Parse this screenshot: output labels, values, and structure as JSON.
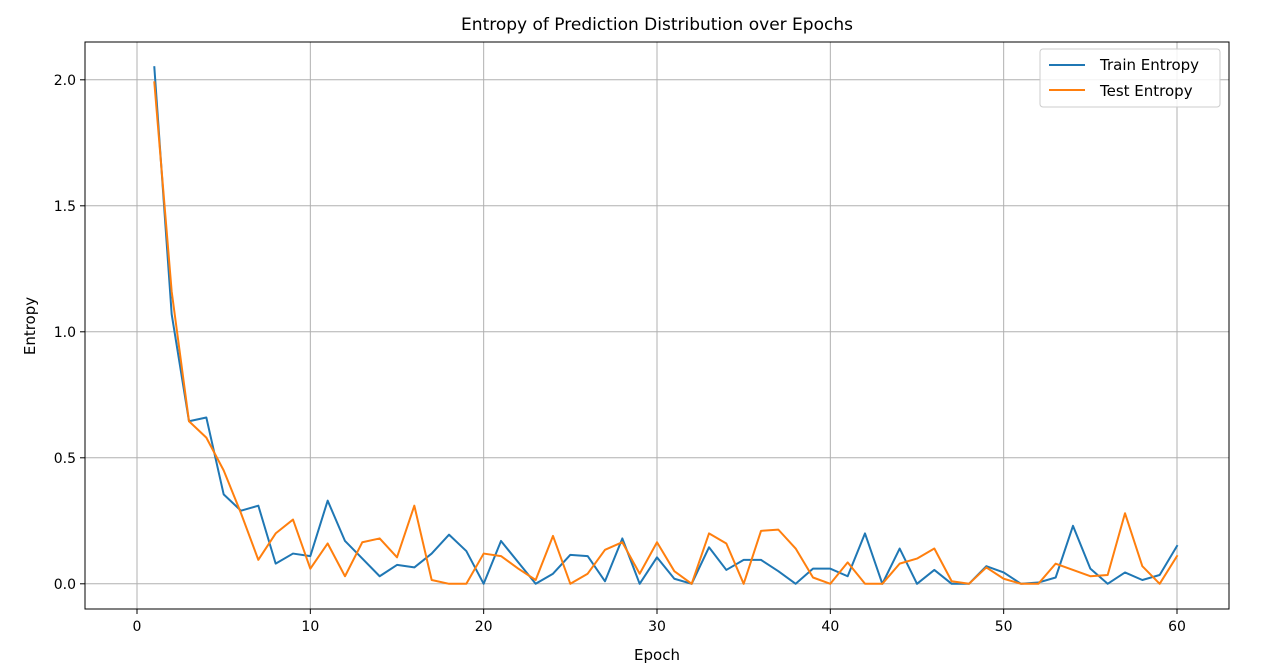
{
  "chart_data": {
    "type": "line",
    "title": "Entropy of Prediction Distribution over Epochs",
    "xlabel": "Epoch",
    "ylabel": "Entropy",
    "xlim": [
      -3,
      63
    ],
    "ylim": [
      -0.1,
      2.15
    ],
    "xticks": [
      0,
      10,
      20,
      30,
      40,
      50,
      60
    ],
    "yticks": [
      0.0,
      0.5,
      1.0,
      1.5,
      2.0
    ],
    "xtick_labels": [
      "0",
      "10",
      "20",
      "30",
      "40",
      "50",
      "60"
    ],
    "ytick_labels": [
      "0.0",
      "0.5",
      "1.0",
      "1.5",
      "2.0"
    ],
    "grid": true,
    "legend_position": "top-right",
    "x": [
      1,
      2,
      3,
      4,
      5,
      6,
      7,
      8,
      9,
      10,
      11,
      12,
      13,
      14,
      15,
      16,
      17,
      18,
      19,
      20,
      21,
      22,
      23,
      24,
      25,
      26,
      27,
      28,
      29,
      30,
      31,
      32,
      33,
      34,
      35,
      36,
      37,
      38,
      39,
      40,
      41,
      42,
      43,
      44,
      45,
      46,
      47,
      48,
      49,
      50,
      51,
      52,
      53,
      54,
      55,
      56,
      57,
      58,
      59,
      60
    ],
    "series": [
      {
        "name": "Train Entropy",
        "color": "#1f77b4",
        "values": [
          2.05,
          1.07,
          0.645,
          0.66,
          0.355,
          0.29,
          0.31,
          0.08,
          0.12,
          0.11,
          0.33,
          0.17,
          0.1,
          0.03,
          0.075,
          0.065,
          0.12,
          0.195,
          0.13,
          0.0,
          0.17,
          0.085,
          0.0,
          0.04,
          0.115,
          0.11,
          0.01,
          0.18,
          0.0,
          0.105,
          0.02,
          0.0,
          0.145,
          0.055,
          0.095,
          0.095,
          0.05,
          0.0,
          0.06,
          0.06,
          0.03,
          0.2,
          0.0,
          0.14,
          0.0,
          0.055,
          0.0,
          0.0,
          0.07,
          0.045,
          0.0,
          0.005,
          0.025,
          0.23,
          0.06,
          0.0,
          0.045,
          0.015,
          0.035,
          0.15
        ]
      },
      {
        "name": "Test Entropy",
        "color": "#ff7f0e",
        "values": [
          1.99,
          1.16,
          0.645,
          0.58,
          0.45,
          0.28,
          0.095,
          0.2,
          0.255,
          0.06,
          0.16,
          0.03,
          0.165,
          0.18,
          0.105,
          0.31,
          0.015,
          0.0,
          0.0,
          0.12,
          0.11,
          0.06,
          0.015,
          0.19,
          0.0,
          0.04,
          0.135,
          0.165,
          0.04,
          0.165,
          0.05,
          0.0,
          0.2,
          0.16,
          0.0,
          0.21,
          0.215,
          0.14,
          0.025,
          0.0,
          0.085,
          0.0,
          0.0,
          0.08,
          0.1,
          0.14,
          0.01,
          0.0,
          0.065,
          0.02,
          0.0,
          0.0,
          0.08,
          0.055,
          0.03,
          0.035,
          0.28,
          0.07,
          0.0,
          0.11
        ]
      }
    ]
  }
}
